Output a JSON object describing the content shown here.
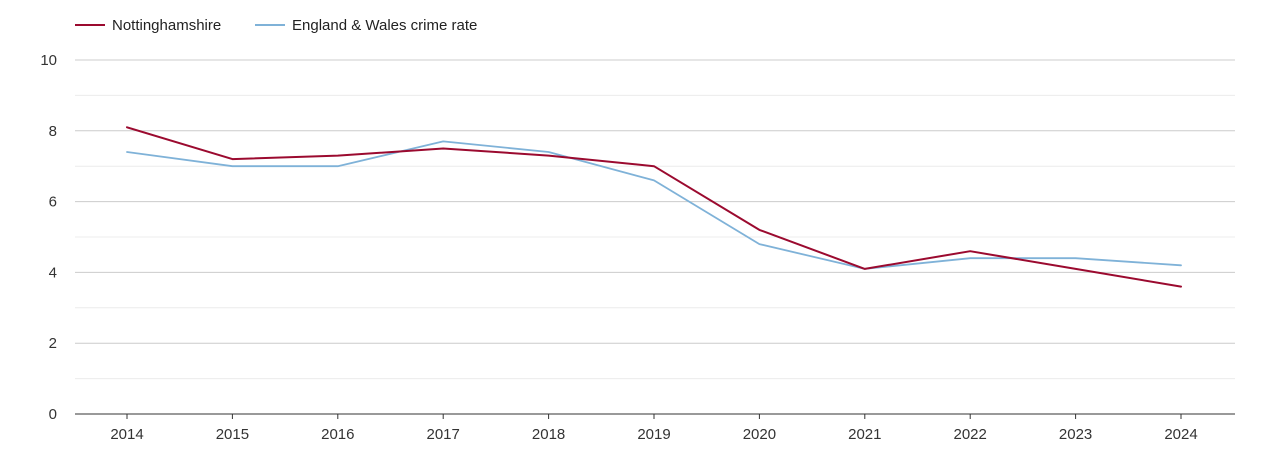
{
  "chart_data": {
    "type": "line",
    "title": "",
    "xlabel": "",
    "ylabel": "",
    "categories": [
      "2014",
      "2015",
      "2016",
      "2017",
      "2018",
      "2019",
      "2020",
      "2021",
      "2022",
      "2023",
      "2024"
    ],
    "series": [
      {
        "name": "Nottinghamshire",
        "color": "#9b0a2f",
        "values": [
          8.1,
          7.2,
          7.3,
          7.5,
          7.3,
          7.0,
          5.2,
          4.1,
          4.6,
          4.1,
          3.6
        ]
      },
      {
        "name": "England & Wales crime rate",
        "color": "#7fb2d8",
        "values": [
          7.4,
          7.0,
          7.0,
          7.7,
          7.4,
          6.6,
          4.8,
          4.1,
          4.4,
          4.4,
          4.2
        ]
      }
    ],
    "ylim": [
      0,
      10
    ],
    "y_ticks": [
      0,
      2,
      4,
      6,
      8,
      10
    ],
    "grid": true,
    "legend": "top-left"
  }
}
